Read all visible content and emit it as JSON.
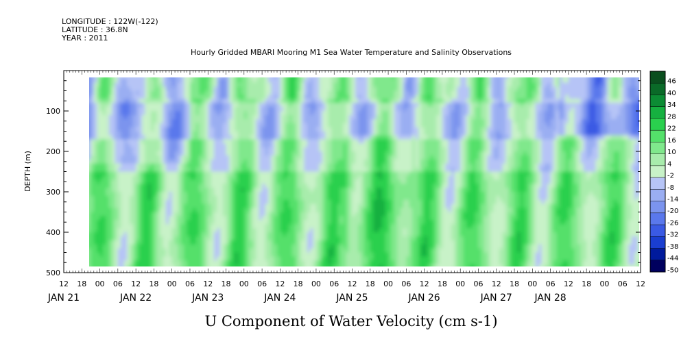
{
  "header": {
    "lines": [
      "LONGITUDE : 122W(-122)",
      "LATITUDE : 36.8N",
      "YEAR : 2011"
    ],
    "title": "Hourly Gridded MBARI Mooring M1 Sea Water Temperature and Salinity Observations"
  },
  "chart_data": {
    "type": "heatmap",
    "title": "Hourly Gridded MBARI Mooring M1 Sea Water Temperature and Salinity Observations",
    "xlabel": "U Component of Water Velocity (cm s-1)",
    "ylabel": "DEPTH (m)",
    "x_range_hours": [
      -12,
      180
    ],
    "x_data_range_hours": [
      -6,
      178
    ],
    "y_range_m": [
      0,
      500
    ],
    "y_data_range_m": [
      20,
      490
    ],
    "y_reversed": true,
    "yticks": [
      100,
      200,
      300,
      400,
      500
    ],
    "yticklabels": [
      "100",
      "200",
      "300",
      "400",
      "500"
    ],
    "hour_ticks": [
      "12",
      "18",
      "00",
      "06",
      "12",
      "18",
      "00",
      "06",
      "12",
      "18",
      "00",
      "06",
      "12",
      "18",
      "00",
      "06",
      "12",
      "18",
      "00",
      "06",
      "12",
      "18",
      "00",
      "06",
      "12",
      "18",
      "00",
      "06",
      "12",
      "18",
      "00",
      "06",
      "12"
    ],
    "day_labels": [
      {
        "label": "JAN 21",
        "hour": -12
      },
      {
        "label": "JAN 22",
        "hour": 12
      },
      {
        "label": "JAN 23",
        "hour": 36
      },
      {
        "label": "JAN 24",
        "hour": 60
      },
      {
        "label": "JAN 25",
        "hour": 84
      },
      {
        "label": "JAN 26",
        "hour": 108
      },
      {
        "label": "JAN 27",
        "hour": 132
      },
      {
        "label": "JAN 28",
        "hour": 150
      }
    ],
    "colorbar": {
      "levels": [
        -50,
        -44,
        -38,
        -32,
        -26,
        -20,
        -14,
        -8,
        -2,
        4,
        10,
        16,
        22,
        28,
        34,
        40,
        46
      ],
      "labels": [
        "46",
        "40",
        "34",
        "28",
        "22",
        "16",
        "10",
        "4",
        "-2",
        "-8",
        "-14",
        "-20",
        "-26",
        "-32",
        "-38",
        "-44",
        "-50"
      ],
      "colors": [
        "#00005e",
        "#001a9c",
        "#1a3ed0",
        "#3a5ae4",
        "#5a78ec",
        "#7b94ee",
        "#9aaef2",
        "#b6c4f6",
        "#c8f2c8",
        "#a8ecac",
        "#80e88c",
        "#54e06a",
        "#2ad04e",
        "#16b040",
        "#0c8c34",
        "#0a6a28",
        "#0a4e1e"
      ]
    },
    "field_pattern": "alternating vertical bands of negative (blue) and positive (green) U velocity; strongest positive values near surface and in 250-480 m layer; strongest negative values near 100-150 m on JAN 21-22 and near surface on JAN 28"
  }
}
